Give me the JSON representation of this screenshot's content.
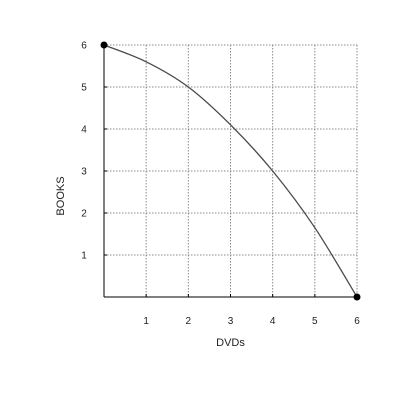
{
  "chart_data": {
    "type": "line",
    "title": "",
    "xlabel": "DVDs",
    "ylabel": "BOOKS",
    "xlim": [
      0,
      6
    ],
    "ylim": [
      0,
      6
    ],
    "x_ticks": [
      1,
      2,
      3,
      4,
      5,
      6
    ],
    "y_ticks": [
      1,
      2,
      3,
      4,
      5,
      6
    ],
    "grid": true,
    "series": [
      {
        "x": [
          0,
          1,
          2,
          3,
          4,
          5,
          6
        ],
        "y": [
          6,
          5.6,
          5,
          4.1,
          3,
          1.65,
          0
        ],
        "color": "#4a4a4a",
        "endpoint_markers": [
          [
            0,
            6
          ],
          [
            6,
            0
          ]
        ]
      }
    ]
  }
}
